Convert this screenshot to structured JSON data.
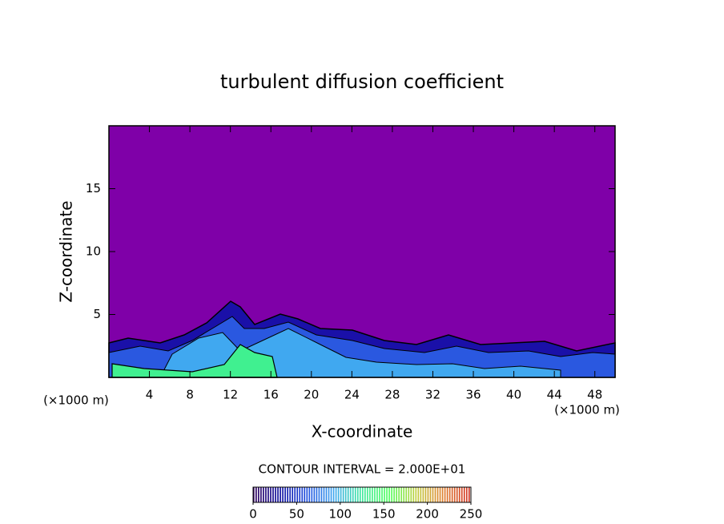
{
  "chart_data": {
    "type": "contour",
    "title": "turbulent diffusion coefficient",
    "xlabel": "X-coordinate",
    "ylabel": "Z-coordinate",
    "x_unit": "(×1000 m)",
    "xlim": [
      0,
      50
    ],
    "ylim": [
      0,
      20
    ],
    "xticks": [
      4,
      8,
      12,
      16,
      20,
      24,
      28,
      32,
      36,
      40,
      44,
      48
    ],
    "yticks": [
      5,
      10,
      15
    ],
    "background_color": "#7f00a8",
    "annotation": "CONTOUR INTERVAL = 2.000E+01",
    "colorbar": {
      "lim": [
        0,
        250
      ],
      "ticks": [
        0,
        50,
        100,
        150,
        200,
        250
      ],
      "colormap": [
        "#30005a",
        "#1010a0",
        "#2050e0",
        "#40a8f0",
        "#40e8a0",
        "#50ff60",
        "#c0d040",
        "#e08030",
        "#d03020"
      ]
    }
  }
}
